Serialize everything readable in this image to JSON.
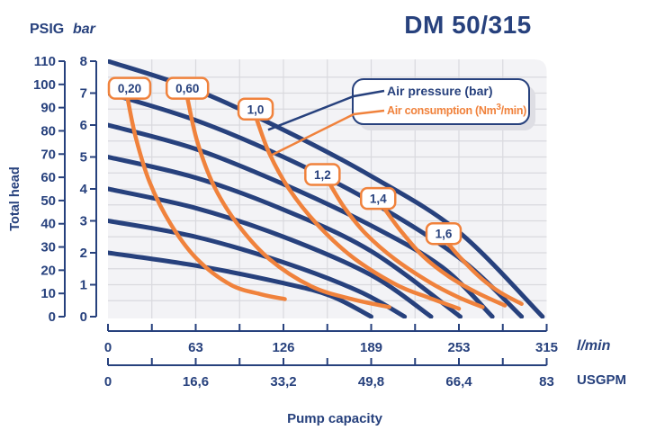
{
  "chart_data": {
    "type": "line",
    "title": "DM 50/315",
    "xlabel": "Pump capacity",
    "ylabel": "Total head",
    "grid": {
      "x_step_l_min": 31.5,
      "y_step_bar": 0.5,
      "grid_on": true
    },
    "x_axes": [
      {
        "name": "l/min",
        "tick_labels": [
          "0",
          "63",
          "126",
          "189",
          "253",
          "315"
        ],
        "min": 0,
        "max": 315
      },
      {
        "name": "USGPM",
        "tick_labels": [
          "0",
          "16,6",
          "33,2",
          "49,8",
          "66,4",
          "83"
        ],
        "min": 0,
        "max": 83
      }
    ],
    "y_axes": [
      {
        "name": "PSIG",
        "tick_labels": [
          "110",
          "100",
          "90",
          "80",
          "70",
          "60",
          "50",
          "40",
          "30",
          "20",
          "10",
          "0"
        ],
        "min": 0,
        "max": 110
      },
      {
        "name": "bar",
        "tick_labels": [
          "8",
          "7",
          "6",
          "5",
          "4",
          "3",
          "2",
          "1",
          "0"
        ],
        "min": 0,
        "max": 8
      }
    ],
    "legend": {
      "position": "top-right",
      "items": [
        {
          "label": "Air pressure (bar)",
          "color": "#27417D"
        },
        {
          "label": "Air consumption (Nm³/min)",
          "sup_parts": [
            "Air consumption (Nm",
            "3",
            "/min)"
          ],
          "color": "#F0823C"
        }
      ],
      "air_pressure_pointer_target": [
        115,
        5.85
      ],
      "air_consumption_pointer_target": [
        117,
        5.05
      ]
    },
    "air_pressure_curves": {
      "name": "Air pressure (bar)",
      "color": "#27417D",
      "unit_x": "l/min",
      "unit_y": "bar",
      "curves": [
        {
          "pressure_bar": 8,
          "points": [
            [
              0,
              8.0
            ],
            [
              63,
              7.1
            ],
            [
              126,
              5.85
            ],
            [
              189,
              4.4
            ],
            [
              252,
              2.65
            ],
            [
              312,
              0
            ]
          ]
        },
        {
          "pressure_bar": 7,
          "points": [
            [
              0,
              7.0
            ],
            [
              63,
              6.15
            ],
            [
              126,
              5.0
            ],
            [
              189,
              3.6
            ],
            [
              252,
              1.85
            ],
            [
              297,
              0
            ]
          ]
        },
        {
          "pressure_bar": 6,
          "points": [
            [
              0,
              6.0
            ],
            [
              63,
              5.25
            ],
            [
              126,
              4.15
            ],
            [
              189,
              2.85
            ],
            [
              240,
              1.55
            ],
            [
              276,
              0
            ]
          ]
        },
        {
          "pressure_bar": 5,
          "points": [
            [
              0,
              5.0
            ],
            [
              63,
              4.35
            ],
            [
              126,
              3.35
            ],
            [
              189,
              2.05
            ],
            [
              253,
              0
            ]
          ]
        },
        {
          "pressure_bar": 4,
          "points": [
            [
              0,
              4.0
            ],
            [
              63,
              3.4
            ],
            [
              126,
              2.5
            ],
            [
              189,
              1.3
            ],
            [
              232,
              0
            ]
          ]
        },
        {
          "pressure_bar": 3,
          "points": [
            [
              0,
              3.0
            ],
            [
              63,
              2.5
            ],
            [
              126,
              1.7
            ],
            [
              180,
              0.8
            ],
            [
              213,
              0
            ]
          ]
        },
        {
          "pressure_bar": 2,
          "points": [
            [
              0,
              2.0
            ],
            [
              63,
              1.6
            ],
            [
              126,
              1.05
            ],
            [
              160,
              0.65
            ],
            [
              189,
              0
            ]
          ]
        }
      ]
    },
    "air_consumption_curves": {
      "name": "Air consumption (Nm³/min)",
      "color": "#F0823C",
      "unit": "Nm³/min",
      "curves": [
        {
          "label": "0,20",
          "value": 0.2,
          "label_center": [
            15.5,
            7.15
          ],
          "points": [
            [
              14,
              6.85
            ],
            [
              20,
              5.6
            ],
            [
              30,
              4.2
            ],
            [
              45,
              2.9
            ],
            [
              64,
              1.8
            ],
            [
              88,
              1.0
            ],
            [
              110,
              0.7
            ],
            [
              127,
              0.55
            ]
          ]
        },
        {
          "label": "0,60",
          "value": 0.6,
          "label_center": [
            57,
            7.15
          ],
          "points": [
            [
              57,
              6.85
            ],
            [
              64,
              5.5
            ],
            [
              76,
              4.1
            ],
            [
              93,
              2.9
            ],
            [
              116,
              1.8
            ],
            [
              146,
              0.95
            ],
            [
              175,
              0.55
            ],
            [
              202,
              0.3
            ]
          ]
        },
        {
          "label": "1,0",
          "value": 1.0,
          "label_center": [
            106,
            6.5
          ],
          "points": [
            [
              107,
              6.15
            ],
            [
              116,
              5.1
            ],
            [
              130,
              4.0
            ],
            [
              150,
              2.9
            ],
            [
              176,
              1.85
            ],
            [
              207,
              1.0
            ],
            [
              230,
              0.6
            ],
            [
              252,
              0.25
            ]
          ]
        },
        {
          "label": "1,2",
          "value": 1.2,
          "label_center": [
            154,
            4.45
          ],
          "points": [
            [
              160,
              4.1
            ],
            [
              170,
              3.4
            ],
            [
              185,
              2.6
            ],
            [
              206,
              1.8
            ],
            [
              232,
              1.05
            ],
            [
              252,
              0.6
            ],
            [
              269,
              0.3
            ]
          ]
        },
        {
          "label": "1,4",
          "value": 1.4,
          "label_center": [
            194,
            3.7
          ],
          "points": [
            [
              199,
              3.35
            ],
            [
              210,
              2.7
            ],
            [
              226,
              1.9
            ],
            [
              245,
              1.25
            ],
            [
              265,
              0.75
            ],
            [
              285,
              0.35
            ]
          ]
        },
        {
          "label": "1,6",
          "value": 1.6,
          "label_center": [
            241,
            2.6
          ],
          "points": [
            [
              244,
              2.3
            ],
            [
              254,
              1.8
            ],
            [
              268,
              1.2
            ],
            [
              282,
              0.75
            ],
            [
              297,
              0.4
            ]
          ]
        }
      ]
    },
    "colors": {
      "navy": "#27417D",
      "orange": "#F0823C",
      "panel_bg": "#F3F3F6",
      "grid": "#D9D9DE",
      "shadow": "#DEDEE4",
      "label_box_bg": "#FFFFFF"
    }
  }
}
